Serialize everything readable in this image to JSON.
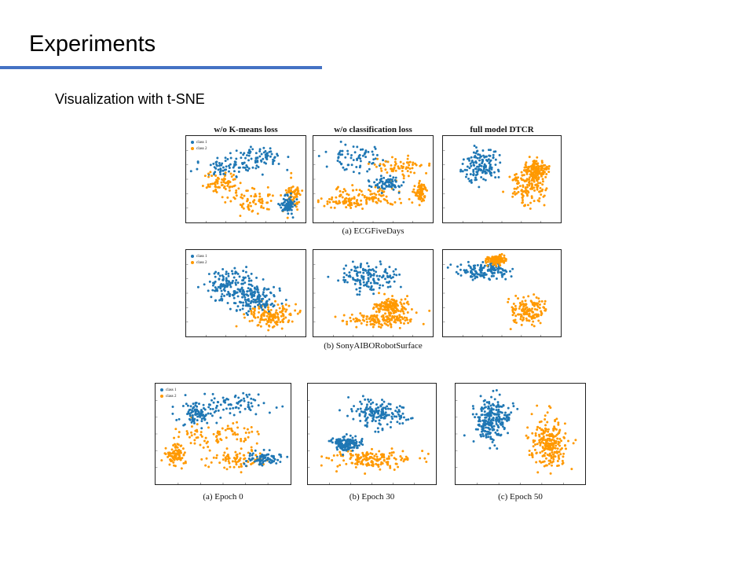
{
  "slide": {
    "title": "Experiments",
    "subtitle": "Visualization with t-SNE",
    "accent_color": "#4472c4"
  },
  "colors": {
    "class_1": "#1f77b4",
    "class_2": "#ff9900"
  },
  "legend": {
    "class_1": "class 1",
    "class_2": "class 2"
  },
  "figure1": {
    "column_titles": [
      "w/o K-means loss",
      "w/o classification loss",
      "full model DTCR"
    ],
    "row_captions": [
      "(a) ECGFiveDays",
      "(b) SonyAIBORobotSurface"
    ]
  },
  "figure2": {
    "captions": [
      "(a) Epoch 0",
      "(b) Epoch 30",
      "(c) Epoch 50"
    ]
  }
}
